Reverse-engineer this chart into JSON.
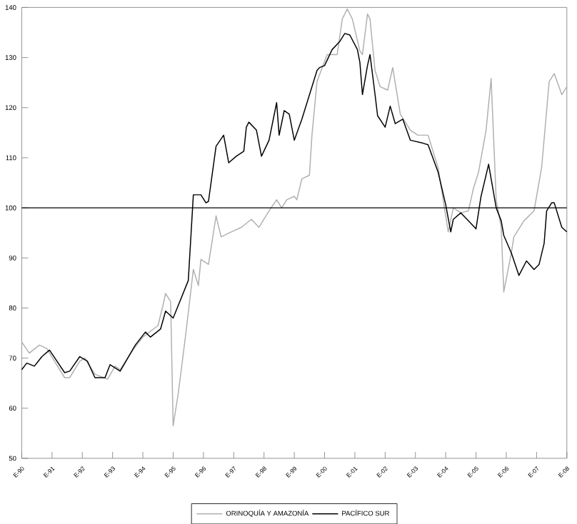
{
  "chart_data": {
    "type": "line",
    "xlim": [
      "1990-01",
      "2008-01"
    ],
    "xticks": [
      {
        "value": "1990-01",
        "label": "E-90"
      },
      {
        "value": "1991-01",
        "label": "E-91"
      },
      {
        "value": "1992-01",
        "label": "E-92"
      },
      {
        "value": "1993-01",
        "label": "E-93"
      },
      {
        "value": "1994-01",
        "label": "E-94"
      },
      {
        "value": "1995-01",
        "label": "E-95"
      },
      {
        "value": "1996-01",
        "label": "E-96"
      },
      {
        "value": "1997-01",
        "label": "E-97"
      },
      {
        "value": "1998-01",
        "label": "E-98"
      },
      {
        "value": "1999-01",
        "label": "E-99"
      },
      {
        "value": "2000-01",
        "label": "E-00"
      },
      {
        "value": "2001-01",
        "label": "E-01"
      },
      {
        "value": "2002-01",
        "label": "E-02"
      },
      {
        "value": "2003-01",
        "label": "E-03"
      },
      {
        "value": "2004-01",
        "label": "E-04"
      },
      {
        "value": "2005-01",
        "label": "E-05"
      },
      {
        "value": "2006-01",
        "label": "E-06"
      },
      {
        "value": "2007-01",
        "label": "E-07"
      },
      {
        "value": "2008-01",
        "label": "E-08"
      }
    ],
    "ylim": [
      50,
      140
    ],
    "yticks": [
      50,
      60,
      70,
      80,
      90,
      100,
      110,
      120,
      130,
      140
    ],
    "ref_lines": [
      {
        "axis": "y",
        "value": 100,
        "color": "#000000"
      }
    ],
    "legend": "bottom",
    "series": [
      {
        "name": "ORINOQUÍA Y AMAZONÍA",
        "color": "#b0b0b0",
        "x": [
          "1990-01",
          "1990-04",
          "1990-08",
          "1990-11",
          "1990-12",
          "1991-06",
          "1991-08",
          "1991-12",
          "1992-02",
          "1992-06",
          "1992-11",
          "1993-02",
          "1993-04",
          "1993-09",
          "1994-01",
          "1994-07",
          "1994-09",
          "1994-10",
          "1994-12",
          "1995-01",
          "1995-03",
          "1995-06",
          "1995-09",
          "1995-11",
          "1995-12",
          "1996-03",
          "1996-06",
          "1996-08",
          "1996-12",
          "1997-04",
          "1997-08",
          "1997-11",
          "1998-03",
          "1998-06",
          "1998-08",
          "1998-10",
          "1999-01",
          "1999-02",
          "1999-04",
          "1999-07",
          "1999-08",
          "1999-10",
          "2000-02",
          "2000-06",
          "2000-08",
          "2000-10",
          "2000-12",
          "2001-03",
          "2001-04",
          "2001-06",
          "2001-07",
          "2001-09",
          "2001-11",
          "2002-02",
          "2002-04",
          "2002-07",
          "2002-11",
          "2003-02",
          "2003-06",
          "2003-10",
          "2004-02",
          "2004-04",
          "2004-07",
          "2004-10",
          "2004-12",
          "2005-02",
          "2005-05",
          "2005-07",
          "2005-09",
          "2005-11",
          "2005-12",
          "2006-03",
          "2006-04",
          "2006-08",
          "2006-12",
          "2007-03",
          "2007-06",
          "2007-08",
          "2007-11",
          "2008-01"
        ],
        "values": [
          73.2,
          71,
          72.6,
          71.9,
          71,
          66.1,
          66.1,
          69.4,
          70,
          66.8,
          65.8,
          68.4,
          67.7,
          71.6,
          74.2,
          76.5,
          80.6,
          82.9,
          81.3,
          56.5,
          62.9,
          74.8,
          87.7,
          84.5,
          89.7,
          88.7,
          98.4,
          94.2,
          95.2,
          96.1,
          97.7,
          96.1,
          99.4,
          101.6,
          100,
          101.6,
          102.3,
          101.6,
          105.8,
          106.5,
          114.5,
          125.2,
          130.6,
          130.6,
          137.7,
          139.7,
          137.7,
          131.3,
          130.6,
          138.7,
          137.7,
          127.4,
          124.2,
          123.5,
          128,
          118.7,
          115.5,
          114.5,
          114.5,
          108,
          95.2,
          100,
          99,
          99.4,
          103.9,
          107.1,
          115.5,
          125.8,
          101.6,
          96.1,
          83.2,
          91,
          94.2,
          97.4,
          99.4,
          108,
          125.2,
          126.8,
          122.6,
          124.2
        ]
      },
      {
        "name": "PACÍFICO SUR",
        "color": "#000000",
        "x": [
          "1990-01",
          "1990-03",
          "1990-06",
          "1990-09",
          "1990-12",
          "1991-06",
          "1991-08",
          "1991-12",
          "1992-03",
          "1992-06",
          "1992-10",
          "1992-12",
          "1993-04",
          "1993-10",
          "1994-02",
          "1994-04",
          "1994-08",
          "1994-10",
          "1995-01",
          "1995-07",
          "1995-09",
          "1995-12",
          "1996-02",
          "1996-03",
          "1996-06",
          "1996-09",
          "1996-11",
          "1997-02",
          "1997-05",
          "1997-06",
          "1997-07",
          "1997-10",
          "1997-12",
          "1998-03",
          "1998-06",
          "1998-07",
          "1998-09",
          "1998-11",
          "1999-01",
          "1999-04",
          "1999-10",
          "1999-11",
          "2000-01",
          "2000-04",
          "2000-07",
          "2000-09",
          "2000-11",
          "2001-02",
          "2001-03",
          "2001-04",
          "2001-06",
          "2001-07",
          "2001-09",
          "2001-10",
          "2002-01",
          "2002-03",
          "2002-05",
          "2002-08",
          "2002-11",
          "2003-04",
          "2003-06",
          "2003-10",
          "2004-01",
          "2004-03",
          "2004-04",
          "2004-07",
          "2004-10",
          "2005-01",
          "2005-03",
          "2005-06",
          "2005-07",
          "2005-09",
          "2005-11",
          "2005-12",
          "2006-03",
          "2006-06",
          "2006-09",
          "2006-12",
          "2007-02",
          "2007-04",
          "2007-05",
          "2007-07",
          "2007-08",
          "2007-11",
          "2008-01"
        ],
        "values": [
          67.7,
          69,
          68.4,
          70.3,
          71.6,
          67.1,
          67.4,
          70.3,
          69.4,
          66.1,
          66.1,
          68.7,
          67.4,
          72.6,
          75.2,
          74.2,
          75.8,
          79.4,
          78,
          85.5,
          102.6,
          102.6,
          101,
          101.3,
          112.3,
          114.5,
          109,
          110.3,
          111.3,
          116.1,
          117.1,
          115.5,
          110.3,
          113.5,
          121,
          114.5,
          119.4,
          118.7,
          113.5,
          117.7,
          127.4,
          128,
          128.4,
          131.6,
          133.2,
          134.8,
          134.5,
          131.6,
          129,
          122.6,
          128.4,
          130.6,
          122.6,
          118.4,
          116.1,
          120.3,
          116.8,
          117.7,
          113.5,
          112.9,
          112.6,
          107.1,
          100.6,
          95.2,
          97.7,
          99,
          97.4,
          95.8,
          102.3,
          108.7,
          105.8,
          100,
          97.4,
          94.5,
          91,
          86.5,
          89.4,
          87.7,
          88.7,
          92.9,
          99.4,
          101,
          101,
          96.1,
          95.2
        ]
      }
    ]
  }
}
